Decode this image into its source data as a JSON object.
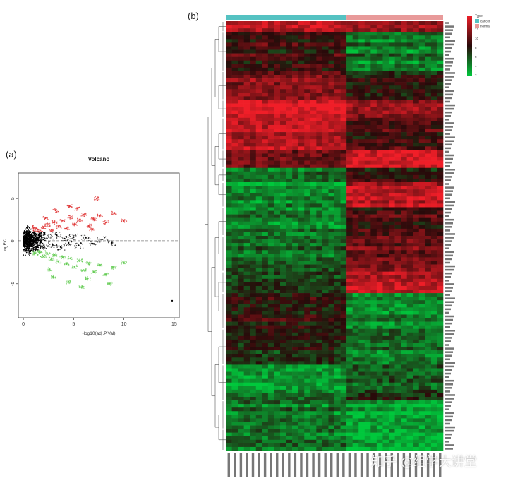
{
  "panels": {
    "a": "(a)",
    "b": "(b)"
  },
  "watermark": "知乎 @组学大讲堂",
  "chart_data": [
    {
      "type": "scatter",
      "title": "Volcano",
      "xlabel": "-log10(adj.P.Val)",
      "ylabel": "logFC",
      "xlim": [
        -0.5,
        15.5
      ],
      "ylim": [
        -9,
        8
      ],
      "xticks": [
        0,
        5,
        10,
        15
      ],
      "yticks": [
        -5,
        0,
        5
      ],
      "threshold_line": {
        "y": 0,
        "style": "dashed"
      },
      "groups": [
        {
          "name": "up",
          "color": "#e03a3a"
        },
        {
          "name": "down",
          "color": "#66cc55"
        },
        {
          "name": "not-significant",
          "color": "#000000"
        }
      ],
      "points": [
        [
          1.2,
          1.4,
          "up"
        ],
        [
          1.6,
          1.1,
          "up"
        ],
        [
          2.0,
          1.6,
          "up"
        ],
        [
          2.4,
          1.9,
          "up"
        ],
        [
          2.8,
          1.3,
          "up"
        ],
        [
          3.1,
          2.2,
          "up"
        ],
        [
          3.5,
          1.7,
          "up"
        ],
        [
          3.9,
          2.4,
          "up"
        ],
        [
          4.3,
          1.5,
          "up"
        ],
        [
          4.7,
          2.8,
          "up"
        ],
        [
          5.1,
          2.0,
          "up"
        ],
        [
          5.6,
          2.5,
          "up"
        ],
        [
          6.0,
          3.1,
          "up"
        ],
        [
          6.5,
          1.8,
          "up"
        ],
        [
          7.0,
          2.6,
          "up"
        ],
        [
          7.6,
          3.0,
          "up"
        ],
        [
          8.2,
          2.2,
          "up"
        ],
        [
          9.0,
          3.3,
          "up"
        ],
        [
          10.0,
          2.4,
          "up"
        ],
        [
          3.2,
          3.6,
          "up"
        ],
        [
          4.6,
          4.1,
          "up"
        ],
        [
          5.4,
          3.8,
          "up"
        ],
        [
          7.3,
          5.0,
          "up"
        ],
        [
          2.2,
          2.7,
          "up"
        ],
        [
          6.8,
          1.4,
          "up"
        ],
        [
          1.2,
          -1.4,
          "down"
        ],
        [
          1.6,
          -1.2,
          "down"
        ],
        [
          2.0,
          -1.8,
          "down"
        ],
        [
          2.4,
          -1.5,
          "down"
        ],
        [
          2.8,
          -2.1,
          "down"
        ],
        [
          3.1,
          -1.6,
          "down"
        ],
        [
          3.5,
          -2.4,
          "down"
        ],
        [
          3.9,
          -1.9,
          "down"
        ],
        [
          4.3,
          -2.7,
          "down"
        ],
        [
          4.7,
          -2.0,
          "down"
        ],
        [
          5.1,
          -3.0,
          "down"
        ],
        [
          5.6,
          -2.3,
          "down"
        ],
        [
          6.0,
          -3.4,
          "down"
        ],
        [
          6.5,
          -2.6,
          "down"
        ],
        [
          7.0,
          -3.6,
          "down"
        ],
        [
          7.6,
          -2.8,
          "down"
        ],
        [
          8.2,
          -3.9,
          "down"
        ],
        [
          9.0,
          -3.1,
          "down"
        ],
        [
          10.0,
          -2.5,
          "down"
        ],
        [
          3.0,
          -4.2,
          "down"
        ],
        [
          4.5,
          -4.8,
          "down"
        ],
        [
          5.8,
          -5.4,
          "down"
        ],
        [
          6.4,
          -4.4,
          "down"
        ],
        [
          2.6,
          -3.3,
          "down"
        ],
        [
          8.6,
          -5.0,
          "down"
        ],
        [
          0.2,
          0.3,
          "not-significant"
        ],
        [
          0.4,
          -0.5,
          "not-significant"
        ],
        [
          0.6,
          0.8,
          "not-significant"
        ],
        [
          0.8,
          -0.9,
          "not-significant"
        ],
        [
          1.0,
          0.4,
          "not-significant"
        ],
        [
          1.3,
          -0.3,
          "not-significant"
        ],
        [
          1.7,
          0.6,
          "not-significant"
        ],
        [
          2.1,
          -0.6,
          "not-significant"
        ],
        [
          2.5,
          0.5,
          "not-significant"
        ],
        [
          2.9,
          -0.4,
          "not-significant"
        ],
        [
          3.3,
          0.7,
          "not-significant"
        ],
        [
          3.7,
          -0.7,
          "not-significant"
        ],
        [
          4.1,
          0.3,
          "not-significant"
        ],
        [
          4.5,
          -0.2,
          "not-significant"
        ],
        [
          5.0,
          0.5,
          "not-significant"
        ],
        [
          5.5,
          -0.5,
          "not-significant"
        ],
        [
          6.2,
          0.4,
          "not-significant"
        ],
        [
          6.9,
          -0.3,
          "not-significant"
        ],
        [
          7.8,
          0.2,
          "not-significant"
        ],
        [
          8.8,
          -0.2,
          "not-significant"
        ],
        [
          14.8,
          -7.0,
          "not-significant"
        ]
      ]
    },
    {
      "type": "heatmap",
      "legend_title": "Type",
      "groups": [
        {
          "name": "cancer",
          "color": "#55c2c2"
        },
        {
          "name": "normal",
          "color": "#e89a9a"
        }
      ],
      "colorbar": {
        "ticks": [
          14,
          12,
          10,
          8,
          6,
          4,
          2
        ]
      },
      "samples_per_group": [
        20,
        16
      ],
      "gene_count": 120,
      "blocks": [
        {
          "genes": [
            0,
            3
          ],
          "cancer": 13,
          "normal": 12
        },
        {
          "genes": [
            3,
            14
          ],
          "cancer": 8.5,
          "normal": 4.5
        },
        {
          "genes": [
            14,
            22
          ],
          "cancer": 10.5,
          "normal": 7.5
        },
        {
          "genes": [
            22,
            27
          ],
          "cancer": 13.5,
          "normal": 11
        },
        {
          "genes": [
            27,
            36
          ],
          "cancer": 12.5,
          "normal": 9
        },
        {
          "genes": [
            36,
            41
          ],
          "cancer": 10,
          "normal": 13
        },
        {
          "genes": [
            41,
            45
          ],
          "cancer": 5,
          "normal": 8
        },
        {
          "genes": [
            45,
            52
          ],
          "cancer": 4,
          "normal": 12.5
        },
        {
          "genes": [
            52,
            60
          ],
          "cancer": 4.5,
          "normal": 9
        },
        {
          "genes": [
            60,
            70
          ],
          "cancer": 5,
          "normal": 10
        },
        {
          "genes": [
            70,
            76
          ],
          "cancer": 6,
          "normal": 12
        },
        {
          "genes": [
            76,
            86
          ],
          "cancer": 8,
          "normal": 4
        },
        {
          "genes": [
            86,
            96
          ],
          "cancer": 7,
          "normal": 4.5
        },
        {
          "genes": [
            96,
            106
          ],
          "cancer": 4,
          "normal": 6
        },
        {
          "genes": [
            106,
            114
          ],
          "cancer": 4.5,
          "normal": 3
        },
        {
          "genes": [
            114,
            120
          ],
          "cancer": 5,
          "normal": 3
        }
      ]
    }
  ]
}
